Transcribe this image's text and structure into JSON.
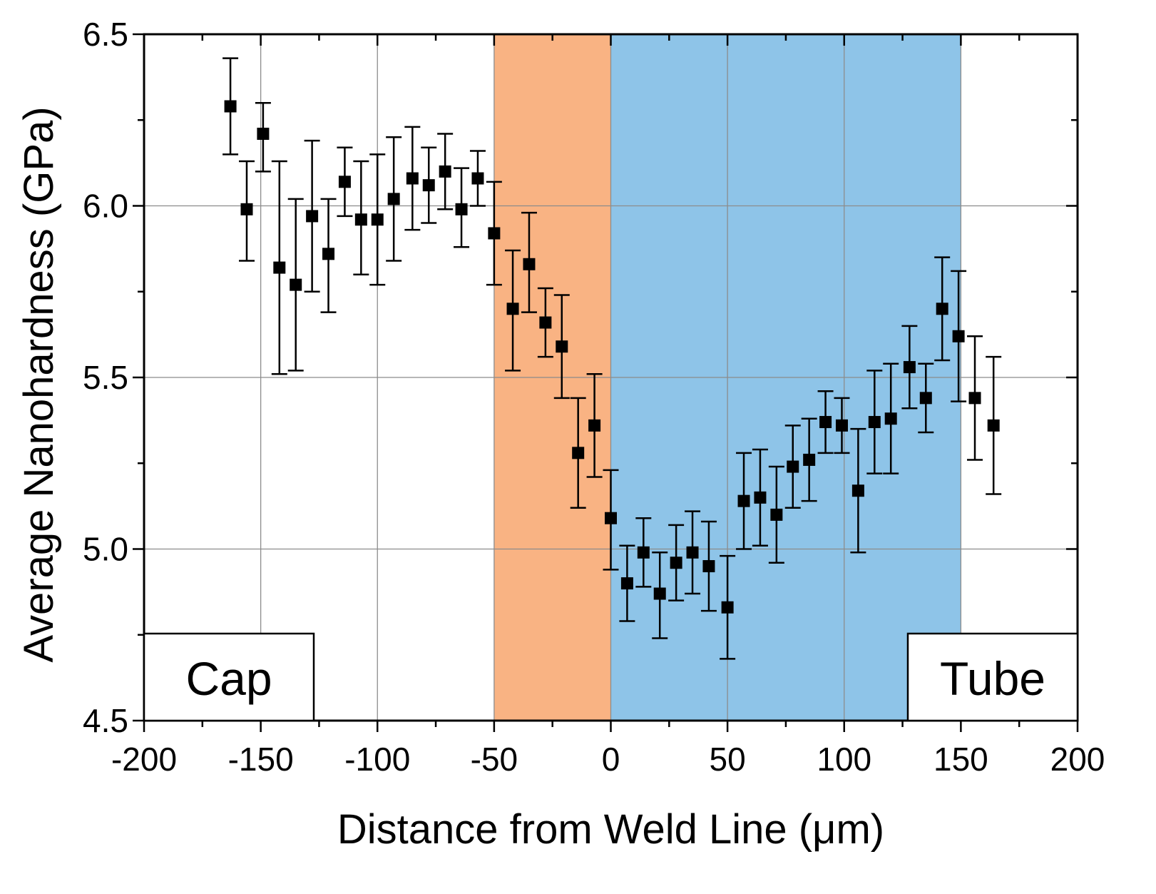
{
  "chart_data": {
    "type": "scatter",
    "title": "",
    "xlabel": "Distance from Weld Line (μm)",
    "ylabel": "Average Nanohardness (GPa)",
    "xlim": [
      -200,
      200
    ],
    "ylim": [
      4.5,
      6.5
    ],
    "xticks": [
      "-200",
      "-150",
      "-100",
      "-50",
      "0",
      "50",
      "100",
      "150",
      "200"
    ],
    "xtick_values": [
      -200,
      -150,
      -100,
      -50,
      0,
      50,
      100,
      150,
      200
    ],
    "yticks": [
      "4.5",
      "5.0",
      "5.5",
      "6.0",
      "6.5"
    ],
    "ytick_values": [
      4.5,
      5.0,
      5.5,
      6.0,
      6.5
    ],
    "grid": true,
    "regions": [
      {
        "name": "haz",
        "from": -50,
        "to": 0,
        "color": "#F9B383"
      },
      {
        "name": "weld",
        "from": 0,
        "to": 150,
        "color": "#8EC4E8"
      }
    ],
    "annotations": [
      {
        "name": "cap-label",
        "text": "Cap",
        "placement": "bottom-left"
      },
      {
        "name": "tube-label",
        "text": "Tube",
        "placement": "bottom-right"
      }
    ],
    "series": [
      {
        "name": "nanohardness",
        "marker": "square",
        "color": "#000000",
        "points": [
          {
            "x": -163,
            "y": 6.29,
            "err_low": 0.14,
            "err_high": 0.14
          },
          {
            "x": -156,
            "y": 5.99,
            "err_low": 0.15,
            "err_high": 0.14
          },
          {
            "x": -149,
            "y": 6.21,
            "err_low": 0.11,
            "err_high": 0.09
          },
          {
            "x": -142,
            "y": 5.82,
            "err_low": 0.31,
            "err_high": 0.31
          },
          {
            "x": -135,
            "y": 5.77,
            "err_low": 0.25,
            "err_high": 0.25
          },
          {
            "x": -128,
            "y": 5.97,
            "err_low": 0.22,
            "err_high": 0.22
          },
          {
            "x": -121,
            "y": 5.86,
            "err_low": 0.17,
            "err_high": 0.16
          },
          {
            "x": -114,
            "y": 6.07,
            "err_low": 0.1,
            "err_high": 0.1
          },
          {
            "x": -107,
            "y": 5.96,
            "err_low": 0.16,
            "err_high": 0.17
          },
          {
            "x": -100,
            "y": 5.96,
            "err_low": 0.19,
            "err_high": 0.19
          },
          {
            "x": -93,
            "y": 6.02,
            "err_low": 0.18,
            "err_high": 0.18
          },
          {
            "x": -85,
            "y": 6.08,
            "err_low": 0.15,
            "err_high": 0.15
          },
          {
            "x": -78,
            "y": 6.06,
            "err_low": 0.11,
            "err_high": 0.11
          },
          {
            "x": -71,
            "y": 6.1,
            "err_low": 0.11,
            "err_high": 0.11
          },
          {
            "x": -64,
            "y": 5.99,
            "err_low": 0.11,
            "err_high": 0.12
          },
          {
            "x": -57,
            "y": 6.08,
            "err_low": 0.08,
            "err_high": 0.08
          },
          {
            "x": -50,
            "y": 5.92,
            "err_low": 0.15,
            "err_high": 0.15
          },
          {
            "x": -42,
            "y": 5.7,
            "err_low": 0.18,
            "err_high": 0.17
          },
          {
            "x": -35,
            "y": 5.83,
            "err_low": 0.14,
            "err_high": 0.15
          },
          {
            "x": -28,
            "y": 5.66,
            "err_low": 0.1,
            "err_high": 0.1
          },
          {
            "x": -21,
            "y": 5.59,
            "err_low": 0.15,
            "err_high": 0.15
          },
          {
            "x": -14,
            "y": 5.28,
            "err_low": 0.16,
            "err_high": 0.16
          },
          {
            "x": -7,
            "y": 5.36,
            "err_low": 0.15,
            "err_high": 0.15
          },
          {
            "x": 0,
            "y": 5.09,
            "err_low": 0.15,
            "err_high": 0.14
          },
          {
            "x": 7,
            "y": 4.9,
            "err_low": 0.11,
            "err_high": 0.11
          },
          {
            "x": 14,
            "y": 4.99,
            "err_low": 0.1,
            "err_high": 0.1
          },
          {
            "x": 21,
            "y": 4.87,
            "err_low": 0.13,
            "err_high": 0.12
          },
          {
            "x": 28,
            "y": 4.96,
            "err_low": 0.11,
            "err_high": 0.11
          },
          {
            "x": 35,
            "y": 4.99,
            "err_low": 0.12,
            "err_high": 0.12
          },
          {
            "x": 42,
            "y": 4.95,
            "err_low": 0.13,
            "err_high": 0.13
          },
          {
            "x": 50,
            "y": 4.83,
            "err_low": 0.15,
            "err_high": 0.15
          },
          {
            "x": 57,
            "y": 5.14,
            "err_low": 0.14,
            "err_high": 0.14
          },
          {
            "x": 64,
            "y": 5.15,
            "err_low": 0.14,
            "err_high": 0.14
          },
          {
            "x": 71,
            "y": 5.1,
            "err_low": 0.14,
            "err_high": 0.14
          },
          {
            "x": 78,
            "y": 5.24,
            "err_low": 0.12,
            "err_high": 0.12
          },
          {
            "x": 85,
            "y": 5.26,
            "err_low": 0.12,
            "err_high": 0.12
          },
          {
            "x": 92,
            "y": 5.37,
            "err_low": 0.09,
            "err_high": 0.09
          },
          {
            "x": 99,
            "y": 5.36,
            "err_low": 0.08,
            "err_high": 0.08
          },
          {
            "x": 106,
            "y": 5.17,
            "err_low": 0.18,
            "err_high": 0.18
          },
          {
            "x": 113,
            "y": 5.37,
            "err_low": 0.15,
            "err_high": 0.15
          },
          {
            "x": 120,
            "y": 5.38,
            "err_low": 0.16,
            "err_high": 0.16
          },
          {
            "x": 128,
            "y": 5.53,
            "err_low": 0.12,
            "err_high": 0.12
          },
          {
            "x": 135,
            "y": 5.44,
            "err_low": 0.1,
            "err_high": 0.1
          },
          {
            "x": 142,
            "y": 5.7,
            "err_low": 0.15,
            "err_high": 0.15
          },
          {
            "x": 149,
            "y": 5.62,
            "err_low": 0.19,
            "err_high": 0.19
          },
          {
            "x": 156,
            "y": 5.44,
            "err_low": 0.18,
            "err_high": 0.18
          },
          {
            "x": 164,
            "y": 5.36,
            "err_low": 0.2,
            "err_high": 0.2
          }
        ]
      }
    ]
  }
}
